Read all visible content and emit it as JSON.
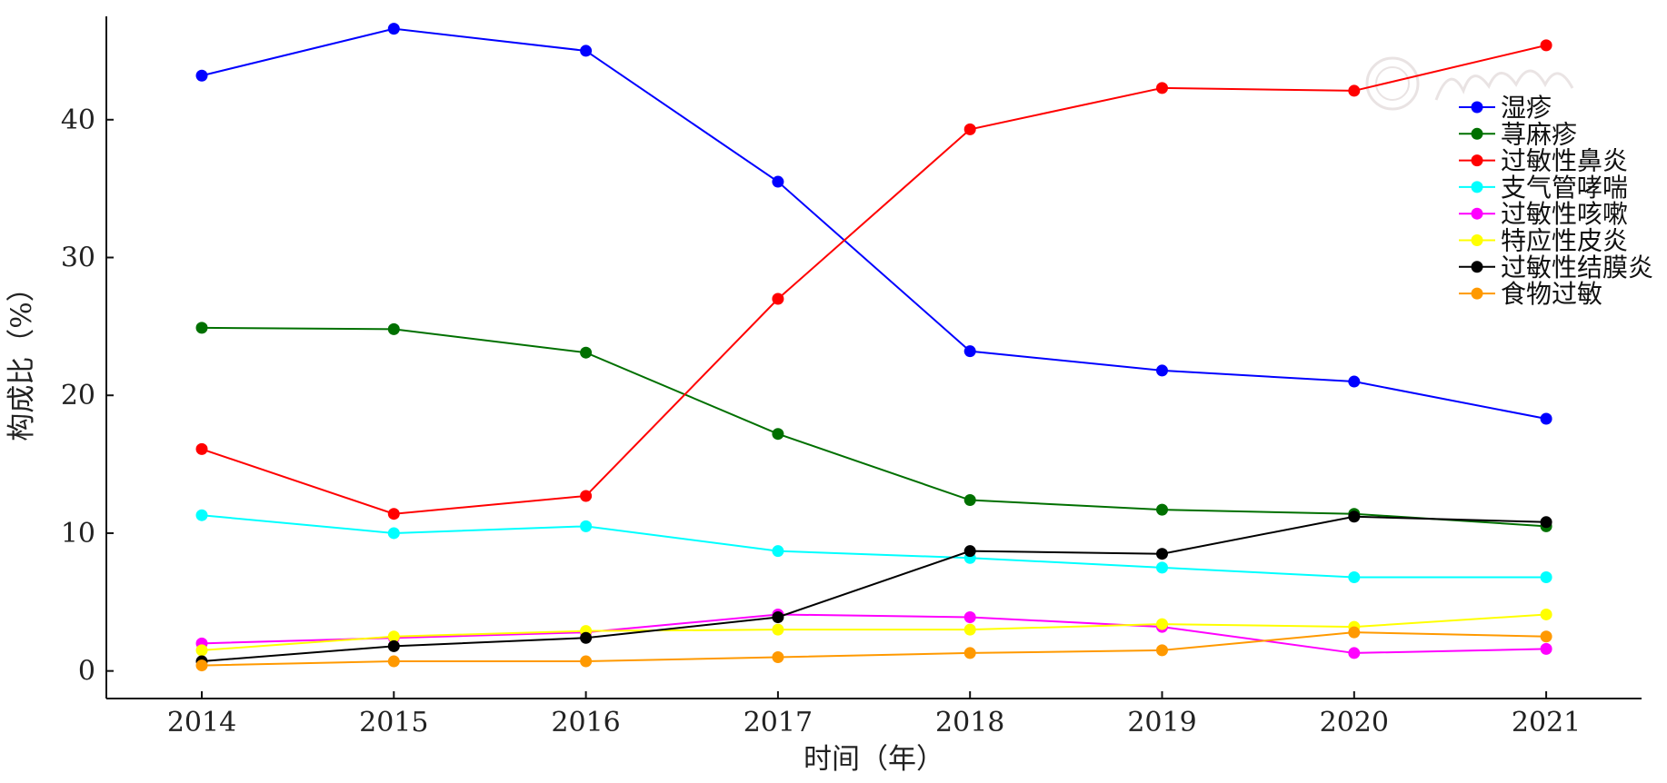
{
  "chart_data": {
    "type": "line",
    "xlabel": "时间（年）",
    "ylabel": "构成比（%）",
    "categories": [
      "2014",
      "2015",
      "2016",
      "2017",
      "2018",
      "2019",
      "2020",
      "2021"
    ],
    "yticks": [
      0,
      10,
      20,
      30,
      40
    ],
    "ylim": [
      -2,
      47.5
    ],
    "grid": false,
    "legend_position": "top-right",
    "series": [
      {
        "name": "湿疹",
        "color": "#0000ff",
        "values": [
          43.2,
          46.6,
          45.0,
          35.5,
          23.2,
          21.8,
          21.0,
          18.3
        ]
      },
      {
        "name": "荨麻疹",
        "color": "#007000",
        "values": [
          24.9,
          24.8,
          23.1,
          17.2,
          12.4,
          11.7,
          11.4,
          10.5
        ]
      },
      {
        "name": "过敏性鼻炎",
        "color": "#ff0000",
        "values": [
          16.1,
          11.4,
          12.7,
          27.0,
          39.3,
          42.3,
          42.1,
          45.4
        ]
      },
      {
        "name": "支气管哮喘",
        "color": "#00ffff",
        "values": [
          11.3,
          10.0,
          10.5,
          8.7,
          8.2,
          7.5,
          6.8,
          6.8
        ]
      },
      {
        "name": "过敏性咳嗽",
        "color": "#ff00ff",
        "values": [
          2.0,
          2.4,
          2.8,
          4.1,
          3.9,
          3.2,
          1.3,
          1.6
        ]
      },
      {
        "name": "特应性皮炎",
        "color": "#ffff00",
        "values": [
          1.5,
          2.5,
          2.9,
          3.0,
          3.0,
          3.4,
          3.2,
          4.1
        ]
      },
      {
        "name": "过敏性结膜炎",
        "color": "#000000",
        "values": [
          0.7,
          1.8,
          2.4,
          3.9,
          8.7,
          8.5,
          11.2,
          10.8
        ]
      },
      {
        "name": "食物过敏",
        "color": "#ff9900",
        "values": [
          0.4,
          0.7,
          0.7,
          1.0,
          1.3,
          1.5,
          2.8,
          2.5
        ]
      }
    ]
  }
}
